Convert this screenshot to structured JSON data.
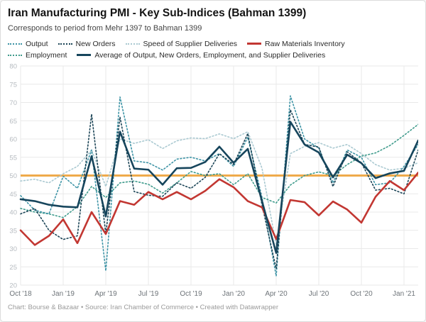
{
  "header": {
    "title": "Iran Manufacturing PMI - Key Sub-Indices (Bahman 1399)",
    "subtitle": "Corresponds to period from Mehr 1397 to Bahman 1399"
  },
  "footer": {
    "text": "Chart: Bourse & Bazaar • Source: Iran Chamber of Commerce • Created with Datawrapper"
  },
  "colors": {
    "baseline_orange": "#efaa4b",
    "grid": "#e9e9e9",
    "y_axis_text": "#b6bbc0",
    "x_axis_text": "#6e7479"
  },
  "chart_data": {
    "type": "line",
    "title": "Iran Manufacturing PMI - Key Sub-Indices (Bahman 1399)",
    "subtitle": "Corresponds to period from Mehr 1397 to Bahman 1399",
    "xlabel": "",
    "ylabel": "",
    "ylim": [
      20,
      80
    ],
    "y_ticks": [
      20,
      25,
      30,
      35,
      40,
      45,
      50,
      55,
      60,
      65,
      70,
      75,
      80
    ],
    "grid": "on",
    "legend_position": "top",
    "baseline": {
      "value": 50,
      "color": "#efaa4b"
    },
    "x_tick_every": 3,
    "categories": [
      "Oct '18",
      "Nov '18",
      "Dec '18",
      "Jan '19",
      "Feb '19",
      "Mar '19",
      "Apr '19",
      "May '19",
      "Jun '19",
      "Jul '19",
      "Aug '19",
      "Sep '19",
      "Oct '19",
      "Nov '19",
      "Dec '19",
      "Jan '20",
      "Feb '20",
      "Mar '20",
      "Apr '20",
      "May '20",
      "Jun '20",
      "Jul '20",
      "Aug '20",
      "Sep '20",
      "Oct '20",
      "Nov '20",
      "Dec '20",
      "Jan '21",
      "Feb '21"
    ],
    "series": [
      {
        "name": "Output",
        "color": "#3e94a6",
        "style": "dotted",
        "values": [
          44.5,
          40.5,
          39.5,
          49.8,
          46.5,
          57,
          23.9,
          71.5,
          54,
          53.5,
          51.5,
          54.5,
          55,
          54,
          56,
          52.5,
          60.5,
          44,
          22.5,
          71.8,
          60,
          57.5,
          48,
          57,
          55,
          47.5,
          48,
          52.5,
          58.5
        ]
      },
      {
        "name": "New Orders",
        "color": "#1c4557",
        "style": "dotted",
        "values": [
          39.5,
          41,
          35,
          32.5,
          33.5,
          66.8,
          34,
          66,
          45.6,
          44.6,
          44.3,
          48,
          46.5,
          49.5,
          56,
          53,
          61.5,
          42,
          24.5,
          68,
          58.5,
          57.8,
          47,
          56.5,
          53.5,
          46,
          46.5,
          45,
          57
        ]
      },
      {
        "name": "Speed of Supplier Deliveries",
        "color": "#aac9d1",
        "style": "dotted",
        "values": [
          48.5,
          49,
          48,
          50.5,
          52.5,
          57,
          47,
          60,
          58.8,
          59.8,
          57.4,
          59.5,
          60.3,
          60.1,
          61.4,
          60.1,
          62,
          52,
          31,
          56,
          58,
          59,
          57.5,
          58.5,
          56,
          53,
          51.5,
          52,
          53.5
        ]
      },
      {
        "name": "Raw Materials Inventory",
        "color": "#c23732",
        "style": "solid",
        "values": [
          35,
          31,
          33.5,
          38,
          31.5,
          40,
          34,
          43,
          42,
          45.5,
          43.5,
          45.5,
          43.5,
          45.8,
          49,
          46.8,
          43,
          41.3,
          32.6,
          43.3,
          42.7,
          39.1,
          42.9,
          40.7,
          37.1,
          44.2,
          48.5,
          46,
          50.8
        ]
      },
      {
        "name": "Employment",
        "color": "#3f9b8c",
        "style": "dotted",
        "values": [
          41,
          40,
          39.5,
          38.5,
          41.5,
          47,
          44,
          48,
          48.5,
          47.6,
          45.2,
          48,
          51.1,
          50,
          50.5,
          47.5,
          50.5,
          44,
          42.5,
          47.4,
          50,
          51,
          50,
          53,
          55.3,
          56.2,
          58.2,
          61,
          64
        ]
      },
      {
        "name": "Average of Output, New Orders, Employment, and Supplier Deliveries",
        "color": "#16455c",
        "style": "solid",
        "values": [
          43.5,
          43,
          42,
          41.5,
          41.3,
          55.3,
          38.8,
          62,
          51.9,
          51.6,
          47.5,
          52,
          52.1,
          53.7,
          57.9,
          53.5,
          57.3,
          43,
          28.8,
          64.7,
          58.5,
          56.3,
          49.5,
          55.7,
          53.4,
          49.3,
          50.6,
          51.3,
          59.6
        ]
      }
    ]
  }
}
